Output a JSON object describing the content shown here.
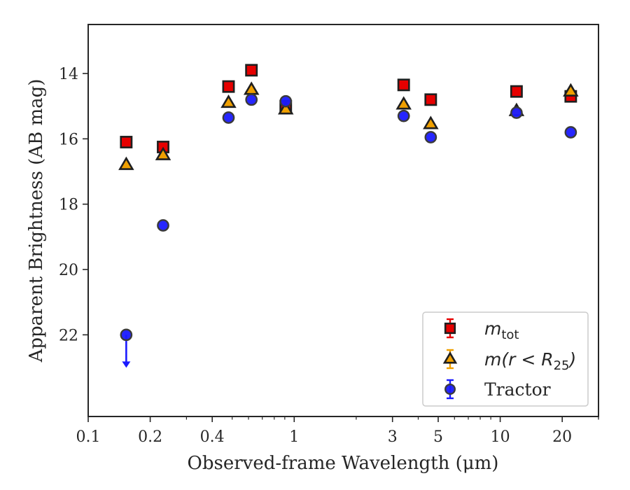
{
  "chart_data": {
    "type": "scatter",
    "xlabel": "Observed-frame Wavelength (μm)",
    "ylabel": "Apparent Brightness (AB mag)",
    "xscale": "log",
    "yinverted": true,
    "xlim": [
      0.1,
      30
    ],
    "ylim": [
      24.5,
      12.5
    ],
    "xticks": [
      {
        "value": 0.1,
        "label": "0.1"
      },
      {
        "value": 0.2,
        "label": "0.2"
      },
      {
        "value": 0.4,
        "label": "0.4"
      },
      {
        "value": 1,
        "label": "1"
      },
      {
        "value": 3,
        "label": "3"
      },
      {
        "value": 5,
        "label": "5"
      },
      {
        "value": 10,
        "label": "10"
      },
      {
        "value": 20,
        "label": "20"
      }
    ],
    "yticks": [
      {
        "value": 14,
        "label": "14"
      },
      {
        "value": 16,
        "label": "16"
      },
      {
        "value": 18,
        "label": "18"
      },
      {
        "value": 20,
        "label": "20"
      },
      {
        "value": 22,
        "label": "22"
      }
    ],
    "legend_position": "lower-right",
    "series": [
      {
        "name": "m_tot",
        "legend_main": "m",
        "legend_sub": "tot",
        "marker": "square",
        "color": "#e60000",
        "points": [
          {
            "x": 0.153,
            "y": 16.1
          },
          {
            "x": 0.231,
            "y": 16.25
          },
          {
            "x": 0.48,
            "y": 14.4
          },
          {
            "x": 0.62,
            "y": 13.9
          },
          {
            "x": 0.91,
            "y": 15.0
          },
          {
            "x": 3.4,
            "y": 14.35
          },
          {
            "x": 4.6,
            "y": 14.8
          },
          {
            "x": 12.0,
            "y": 14.55
          },
          {
            "x": 22.0,
            "y": 14.7
          }
        ]
      },
      {
        "name": "m(r < R25)",
        "legend_main": "m(r < R",
        "legend_sub": "25",
        "legend_tail": ")",
        "marker": "triangle",
        "color": "#f0a000",
        "points": [
          {
            "x": 0.153,
            "y": 16.8
          },
          {
            "x": 0.231,
            "y": 16.5
          },
          {
            "x": 0.48,
            "y": 14.9
          },
          {
            "x": 0.62,
            "y": 14.5
          },
          {
            "x": 0.91,
            "y": 15.1
          },
          {
            "x": 3.4,
            "y": 14.95
          },
          {
            "x": 4.6,
            "y": 15.55
          },
          {
            "x": 12.0,
            "y": 15.15
          },
          {
            "x": 22.0,
            "y": 14.55
          }
        ]
      },
      {
        "name": "Tractor",
        "legend_main": "Tractor",
        "marker": "circle",
        "color": "#1a1aff",
        "points": [
          {
            "x": 0.153,
            "y": 22.0,
            "upper_limit": true
          },
          {
            "x": 0.231,
            "y": 18.65
          },
          {
            "x": 0.48,
            "y": 15.35
          },
          {
            "x": 0.62,
            "y": 14.8
          },
          {
            "x": 0.91,
            "y": 14.85
          },
          {
            "x": 3.4,
            "y": 15.3
          },
          {
            "x": 4.6,
            "y": 15.95
          },
          {
            "x": 12.0,
            "y": 15.2
          },
          {
            "x": 22.0,
            "y": 15.8
          }
        ]
      }
    ]
  }
}
